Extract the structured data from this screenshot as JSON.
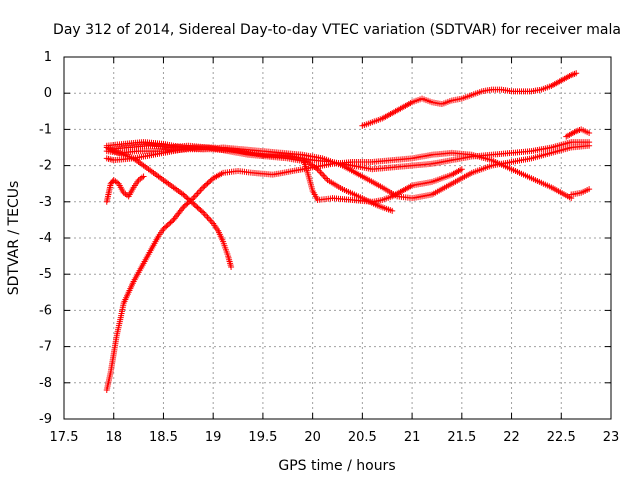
{
  "chart_data": {
    "type": "scatter",
    "title": "Day 312 of 2014, Sidereal Day-to-day VTEC variation (SDTVAR) for receiver mala",
    "xlabel": "GPS time / hours",
    "ylabel": "SDTVAR / TECUs",
    "xlim": [
      17.5,
      23
    ],
    "ylim": [
      -9,
      1
    ],
    "xticks": [
      "17.5",
      "18",
      "18.5",
      "19",
      "19.5",
      "20",
      "20.5",
      "21",
      "21.5",
      "22",
      "22.5",
      "23"
    ],
    "yticks": [
      "1",
      "0",
      "-1",
      "-2",
      "-3",
      "-4",
      "-5",
      "-6",
      "-7",
      "-8",
      "-9"
    ],
    "grid": true,
    "marker": "+",
    "color": "#ff0000",
    "series": [
      {
        "name": "track-1",
        "points": [
          [
            17.93,
            -8.2
          ],
          [
            17.97,
            -7.7
          ],
          [
            18.0,
            -7.2
          ],
          [
            18.03,
            -6.7
          ],
          [
            18.07,
            -6.2
          ],
          [
            18.1,
            -5.8
          ],
          [
            18.15,
            -5.5
          ],
          [
            18.2,
            -5.2
          ],
          [
            18.25,
            -4.95
          ],
          [
            18.3,
            -4.7
          ],
          [
            18.35,
            -4.45
          ],
          [
            18.4,
            -4.2
          ],
          [
            18.45,
            -3.95
          ],
          [
            18.5,
            -3.75
          ],
          [
            18.6,
            -3.5
          ],
          [
            18.7,
            -3.15
          ],
          [
            18.8,
            -2.9
          ],
          [
            18.9,
            -2.6
          ],
          [
            19.0,
            -2.35
          ],
          [
            19.1,
            -2.2
          ],
          [
            19.25,
            -2.15
          ],
          [
            19.4,
            -2.2
          ],
          [
            19.6,
            -2.25
          ],
          [
            19.8,
            -2.15
          ],
          [
            20.0,
            -2.05
          ],
          [
            20.2,
            -1.95
          ],
          [
            20.4,
            -1.9
          ],
          [
            20.6,
            -1.9
          ],
          [
            20.8,
            -1.85
          ],
          [
            21.0,
            -1.8
          ],
          [
            21.2,
            -1.7
          ],
          [
            21.4,
            -1.65
          ],
          [
            21.6,
            -1.7
          ],
          [
            21.8,
            -1.85
          ],
          [
            22.0,
            -2.1
          ],
          [
            22.2,
            -2.35
          ],
          [
            22.4,
            -2.6
          ],
          [
            22.6,
            -2.9
          ]
        ]
      },
      {
        "name": "track-2",
        "points": [
          [
            17.93,
            -1.5
          ],
          [
            18.0,
            -1.6
          ],
          [
            18.1,
            -1.7
          ],
          [
            18.2,
            -1.8
          ],
          [
            18.3,
            -2.0
          ],
          [
            18.4,
            -2.2
          ],
          [
            18.5,
            -2.4
          ],
          [
            18.6,
            -2.6
          ],
          [
            18.7,
            -2.8
          ],
          [
            18.8,
            -3.05
          ],
          [
            18.9,
            -3.3
          ],
          [
            19.0,
            -3.6
          ],
          [
            19.05,
            -3.8
          ],
          [
            19.1,
            -4.1
          ],
          [
            19.15,
            -4.5
          ],
          [
            19.18,
            -4.8
          ]
        ]
      },
      {
        "name": "track-3",
        "points": [
          [
            17.93,
            -1.8
          ],
          [
            18.0,
            -1.85
          ],
          [
            18.2,
            -1.8
          ],
          [
            18.4,
            -1.7
          ],
          [
            18.6,
            -1.6
          ],
          [
            18.8,
            -1.5
          ],
          [
            19.0,
            -1.5
          ],
          [
            19.2,
            -1.55
          ],
          [
            19.4,
            -1.65
          ],
          [
            19.6,
            -1.7
          ],
          [
            19.8,
            -1.75
          ],
          [
            20.0,
            -1.85
          ],
          [
            20.2,
            -1.9
          ],
          [
            20.4,
            -2.0
          ],
          [
            20.6,
            -2.1
          ],
          [
            20.8,
            -2.05
          ],
          [
            21.0,
            -2.0
          ],
          [
            21.2,
            -1.95
          ],
          [
            21.4,
            -1.85
          ],
          [
            21.6,
            -1.75
          ],
          [
            21.8,
            -1.7
          ],
          [
            22.0,
            -1.65
          ],
          [
            22.2,
            -1.6
          ],
          [
            22.4,
            -1.5
          ],
          [
            22.6,
            -1.35
          ],
          [
            22.78,
            -1.35
          ]
        ]
      },
      {
        "name": "track-4",
        "points": [
          [
            17.93,
            -1.45
          ],
          [
            18.1,
            -1.4
          ],
          [
            18.3,
            -1.35
          ],
          [
            18.5,
            -1.4
          ],
          [
            18.7,
            -1.5
          ],
          [
            18.9,
            -1.55
          ],
          [
            19.1,
            -1.5
          ],
          [
            19.3,
            -1.55
          ],
          [
            19.5,
            -1.6
          ],
          [
            19.7,
            -1.65
          ],
          [
            19.9,
            -1.7
          ],
          [
            20.1,
            -1.8
          ],
          [
            20.3,
            -2.0
          ],
          [
            20.5,
            -2.3
          ],
          [
            20.7,
            -2.6
          ],
          [
            20.85,
            -2.85
          ],
          [
            21.0,
            -2.9
          ],
          [
            21.2,
            -2.8
          ],
          [
            21.4,
            -2.5
          ],
          [
            21.6,
            -2.2
          ],
          [
            21.8,
            -2.0
          ],
          [
            22.0,
            -1.9
          ],
          [
            22.2,
            -1.8
          ],
          [
            22.4,
            -1.65
          ],
          [
            22.6,
            -1.5
          ],
          [
            22.78,
            -1.45
          ]
        ]
      },
      {
        "name": "track-5",
        "points": [
          [
            17.95,
            -1.55
          ],
          [
            18.15,
            -1.5
          ],
          [
            18.35,
            -1.45
          ],
          [
            18.55,
            -1.5
          ],
          [
            18.75,
            -1.45
          ],
          [
            18.95,
            -1.5
          ],
          [
            19.15,
            -1.6
          ],
          [
            19.35,
            -1.7
          ],
          [
            19.55,
            -1.75
          ],
          [
            19.75,
            -1.8
          ],
          [
            19.95,
            -1.9
          ],
          [
            20.05,
            -2.1
          ],
          [
            20.15,
            -2.4
          ],
          [
            20.3,
            -2.65
          ],
          [
            20.5,
            -2.9
          ],
          [
            20.65,
            -3.1
          ],
          [
            20.8,
            -3.25
          ]
        ]
      },
      {
        "name": "track-6",
        "points": [
          [
            17.93,
            -1.6
          ],
          [
            18.05,
            -1.65
          ],
          [
            18.25,
            -1.6
          ],
          [
            18.5,
            -1.6
          ],
          [
            18.75,
            -1.55
          ],
          [
            19.0,
            -1.55
          ],
          [
            19.25,
            -1.6
          ],
          [
            19.5,
            -1.7
          ],
          [
            19.75,
            -1.75
          ],
          [
            19.9,
            -1.8
          ],
          [
            19.95,
            -2.2
          ],
          [
            20.0,
            -2.7
          ],
          [
            20.05,
            -2.95
          ],
          [
            20.2,
            -2.9
          ],
          [
            20.4,
            -2.95
          ],
          [
            20.6,
            -3.0
          ],
          [
            20.7,
            -2.95
          ],
          [
            20.8,
            -2.85
          ],
          [
            20.9,
            -2.7
          ],
          [
            21.0,
            -2.55
          ],
          [
            21.2,
            -2.45
          ],
          [
            21.4,
            -2.25
          ],
          [
            21.5,
            -2.1
          ]
        ]
      },
      {
        "name": "track-7",
        "points": [
          [
            20.5,
            -0.9
          ],
          [
            20.6,
            -0.8
          ],
          [
            20.7,
            -0.7
          ],
          [
            20.8,
            -0.55
          ],
          [
            20.9,
            -0.4
          ],
          [
            21.0,
            -0.25
          ],
          [
            21.1,
            -0.15
          ],
          [
            21.2,
            -0.25
          ],
          [
            21.3,
            -0.3
          ],
          [
            21.4,
            -0.2
          ],
          [
            21.5,
            -0.15
          ],
          [
            21.6,
            -0.05
          ],
          [
            21.7,
            0.05
          ],
          [
            21.8,
            0.1
          ],
          [
            21.9,
            0.1
          ],
          [
            22.0,
            0.05
          ],
          [
            22.1,
            0.05
          ],
          [
            22.2,
            0.05
          ],
          [
            22.3,
            0.1
          ],
          [
            22.4,
            0.2
          ],
          [
            22.5,
            0.35
          ],
          [
            22.6,
            0.5
          ],
          [
            22.65,
            0.55
          ]
        ]
      },
      {
        "name": "track-8",
        "points": [
          [
            22.6,
            -2.8
          ],
          [
            22.7,
            -2.75
          ],
          [
            22.78,
            -2.65
          ]
        ]
      },
      {
        "name": "track-9",
        "points": [
          [
            22.55,
            -1.2
          ],
          [
            22.65,
            -1.05
          ],
          [
            22.7,
            -1.0
          ],
          [
            22.78,
            -1.1
          ]
        ]
      },
      {
        "name": "track-10",
        "points": [
          [
            17.93,
            -3.0
          ],
          [
            17.95,
            -2.75
          ],
          [
            17.97,
            -2.5
          ],
          [
            18.0,
            -2.4
          ],
          [
            18.05,
            -2.5
          ],
          [
            18.1,
            -2.75
          ],
          [
            18.15,
            -2.85
          ],
          [
            18.2,
            -2.6
          ],
          [
            18.25,
            -2.4
          ],
          [
            18.3,
            -2.3
          ]
        ]
      }
    ]
  }
}
